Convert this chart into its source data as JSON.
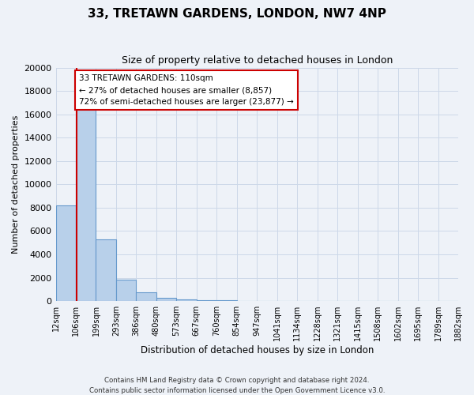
{
  "title": "33, TRETAWN GARDENS, LONDON, NW7 4NP",
  "subtitle": "Size of property relative to detached houses in London",
  "bar_values": [
    8200,
    16600,
    5300,
    1850,
    750,
    250,
    150,
    100,
    100,
    0,
    0,
    0,
    0,
    0,
    0,
    0,
    0,
    0,
    0,
    0
  ],
  "categories": [
    "12sqm",
    "106sqm",
    "199sqm",
    "293sqm",
    "386sqm",
    "480sqm",
    "573sqm",
    "667sqm",
    "760sqm",
    "854sqm",
    "947sqm",
    "1041sqm",
    "1134sqm",
    "1228sqm",
    "1321sqm",
    "1415sqm",
    "1508sqm",
    "1602sqm",
    "1695sqm",
    "1789sqm",
    "1882sqm"
  ],
  "bar_color": "#b8d0ea",
  "bar_edge_color": "#6699cc",
  "background_color": "#eef2f8",
  "grid_color": "#ccd8e8",
  "ylabel": "Number of detached properties",
  "xlabel": "Distribution of detached houses by size in London",
  "ylim": [
    0,
    20000
  ],
  "yticks": [
    0,
    2000,
    4000,
    6000,
    8000,
    10000,
    12000,
    14000,
    16000,
    18000,
    20000
  ],
  "property_line_color": "#cc0000",
  "annotation_title": "33 TRETAWN GARDENS: 110sqm",
  "annotation_line1": "← 27% of detached houses are smaller (8,857)",
  "annotation_line2": "72% of semi-detached houses are larger (23,877) →",
  "annotation_box_color": "#ffffff",
  "annotation_box_edge": "#cc0000",
  "footer_line1": "Contains HM Land Registry data © Crown copyright and database right 2024.",
  "footer_line2": "Contains public sector information licensed under the Open Government Licence v3.0."
}
